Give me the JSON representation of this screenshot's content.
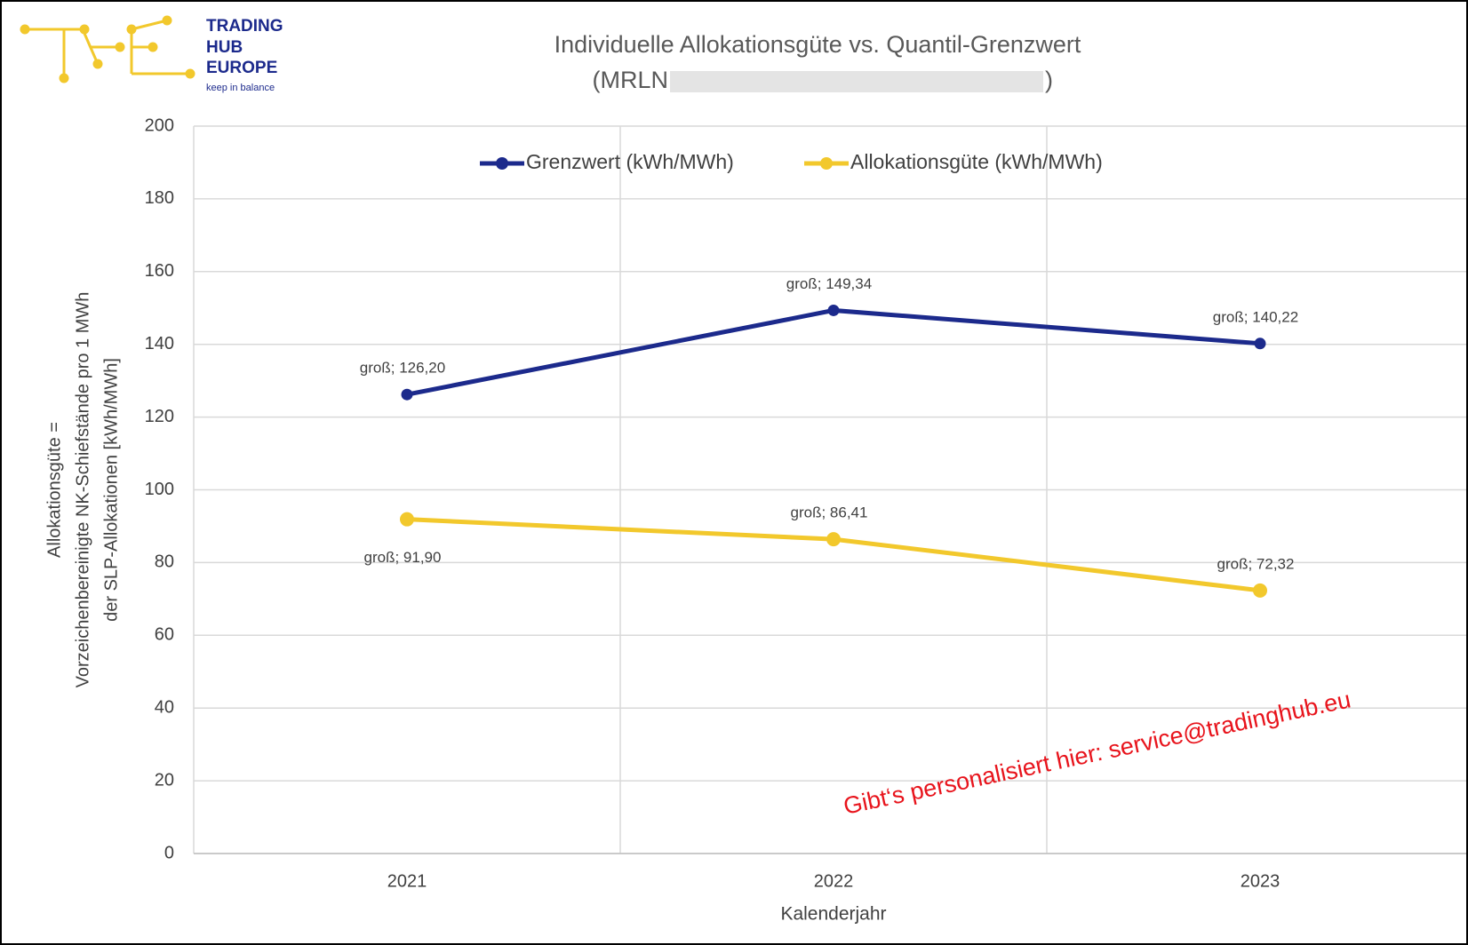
{
  "logo": {
    "lines": [
      "TRADING",
      "HUB",
      "EUROPE"
    ],
    "tagline": "keep in balance"
  },
  "chart_data": {
    "type": "line",
    "title": "Individuelle Allokationsgüte vs. Quantil-Grenzwert",
    "subtitle_prefix": "(MRLN",
    "subtitle_suffix": ")",
    "y_label_lines": [
      "Allokationsgüte =",
      "Vorzeichenbereinigte NK-Schiefstände pro 1 MWh",
      "der SLP-Allokationen [kWh/MWh]"
    ],
    "x_label": "Kalenderjahr",
    "annotation": "Gibt‘s personalisiert hier: service@tradinghub.eu",
    "categories": [
      "2021",
      "2022",
      "2023"
    ],
    "series": [
      {
        "name": "Grenzwert (kWh/MWh)",
        "color": "#1c2a8c",
        "values": [
          126.2,
          149.34,
          140.22
        ],
        "value_labels": [
          "groß; 126,20",
          "groß; 149,34",
          "groß; 140,22"
        ]
      },
      {
        "name": "Allokationsgüte (kWh/MWh)",
        "color": "#f2c82c",
        "values": [
          91.9,
          86.41,
          72.32
        ],
        "value_labels": [
          "groß; 91,90",
          "groß; 86,41",
          "groß; 72,32"
        ]
      }
    ],
    "ylim": [
      0,
      200
    ],
    "yticks": [
      0,
      20,
      40,
      60,
      80,
      100,
      120,
      140,
      160,
      180,
      200
    ],
    "grid": true,
    "legend": "top"
  }
}
